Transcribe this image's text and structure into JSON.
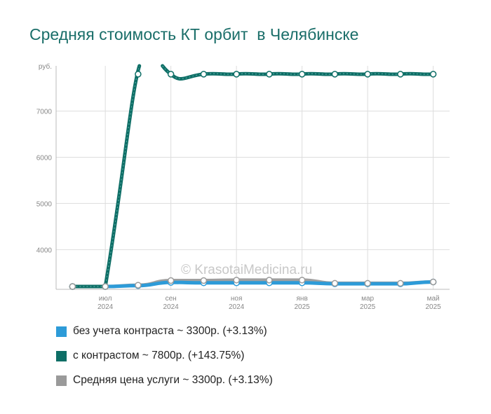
{
  "chart_data": {
    "type": "line",
    "title": "Средняя стоимость КТ орбит  в Челябинске",
    "ylabel": "руб.",
    "ylim": [
      3140,
      7980
    ],
    "yticks": [
      4000,
      5000,
      6000,
      7000
    ],
    "xlim": [
      -0.5,
      11.5
    ],
    "x_tick_positions": [
      1,
      3,
      5,
      7,
      9,
      11
    ],
    "x_ticks": [
      {
        "month": "июл",
        "year": "2024"
      },
      {
        "month": "сен",
        "year": "2024"
      },
      {
        "month": "ноя",
        "year": "2024"
      },
      {
        "month": "янв",
        "year": "2025"
      },
      {
        "month": "мар",
        "year": "2025"
      },
      {
        "month": "май",
        "year": "2025"
      }
    ],
    "x": [
      0,
      1,
      2,
      3,
      4,
      5,
      6,
      7,
      8,
      9,
      10,
      11
    ],
    "grid": true,
    "legend_position": "bottom",
    "watermark": "© KrasotaiMedicina.ru",
    "series": [
      {
        "name": "без учета контраста ~ 3300р. (+3.13%)",
        "color": "#2d9bd8",
        "values": [
          3200,
          3200,
          3220,
          3290,
          3280,
          3280,
          3280,
          3280,
          3260,
          3260,
          3260,
          3300
        ]
      },
      {
        "name": "с контрастом ~ 7800р. (+143.75%)",
        "color": "#0e6e66",
        "values": [
          3200,
          3200,
          7800,
          7800,
          7800,
          7800,
          7800,
          7800,
          7800,
          7800,
          7800,
          7800
        ]
      },
      {
        "name": "Средняя цена услуги ~ 3300р. (+3.13%)",
        "color": "#9a9a9a",
        "values": [
          3200,
          3200,
          3230,
          3330,
          3330,
          3340,
          3340,
          3340,
          3270,
          3270,
          3270,
          3300
        ]
      }
    ]
  }
}
